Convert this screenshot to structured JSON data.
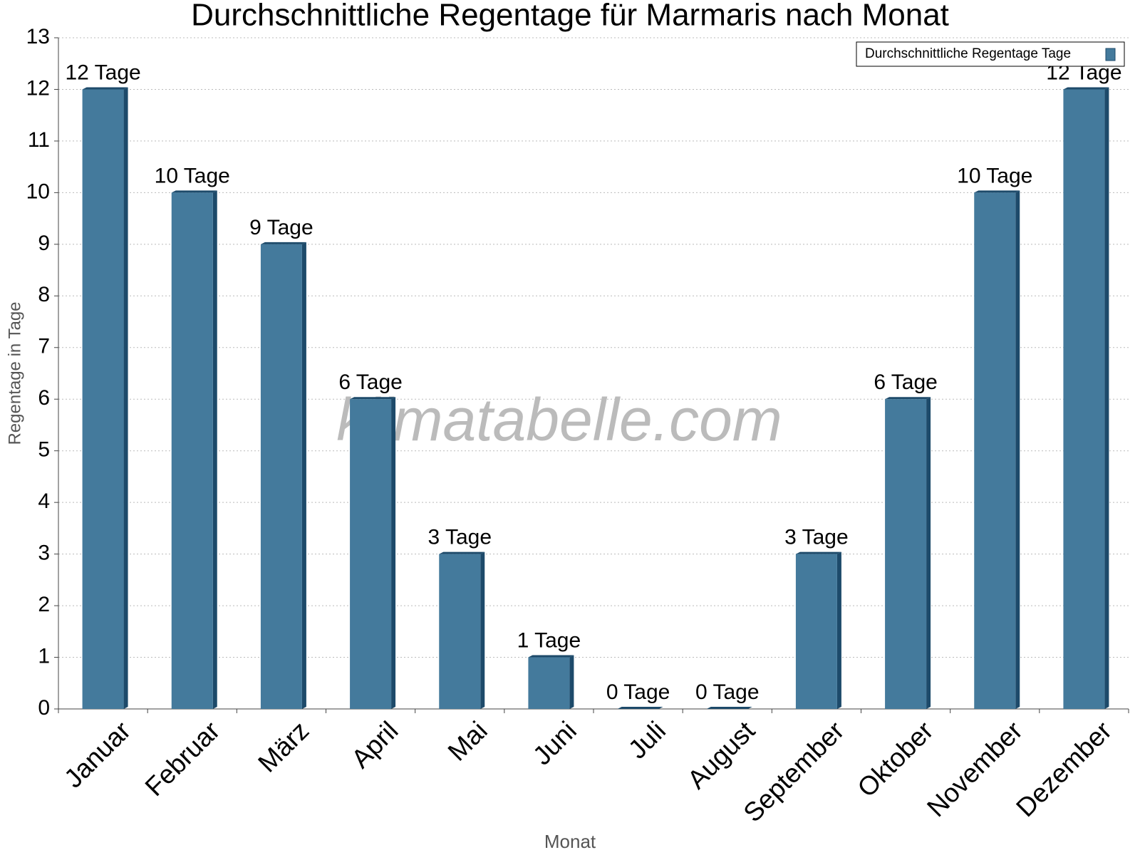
{
  "chart_data": {
    "type": "bar",
    "title": "Durchschnittliche Regentage für Marmaris nach Monat",
    "x_label": "Monat",
    "y_label": "Regentage in Tage",
    "watermark": "klimatabelle.com",
    "categories": [
      "Januar",
      "Februar",
      "März",
      "April",
      "Mai",
      "Juni",
      "Juli",
      "August",
      "September",
      "Oktober",
      "November",
      "Dezember"
    ],
    "series": [
      {
        "name": "Durchschnittliche Regentage Tage",
        "color": "#447a9c",
        "values": [
          12,
          10,
          9,
          6,
          3,
          1,
          0,
          0,
          3,
          6,
          10,
          12
        ],
        "value_labels": [
          "12 Tage",
          "10 Tage",
          "9 Tage",
          "6 Tage",
          "3 Tage",
          "1 Tage",
          "0 Tage",
          "0 Tage",
          "3 Tage",
          "6 Tage",
          "10 Tage",
          "12 Tage"
        ]
      }
    ],
    "ylim": [
      0,
      13
    ],
    "yticks": [
      0,
      1,
      2,
      3,
      4,
      5,
      6,
      7,
      8,
      9,
      10,
      11,
      12,
      13
    ],
    "grid": true,
    "legend": "upper right"
  }
}
